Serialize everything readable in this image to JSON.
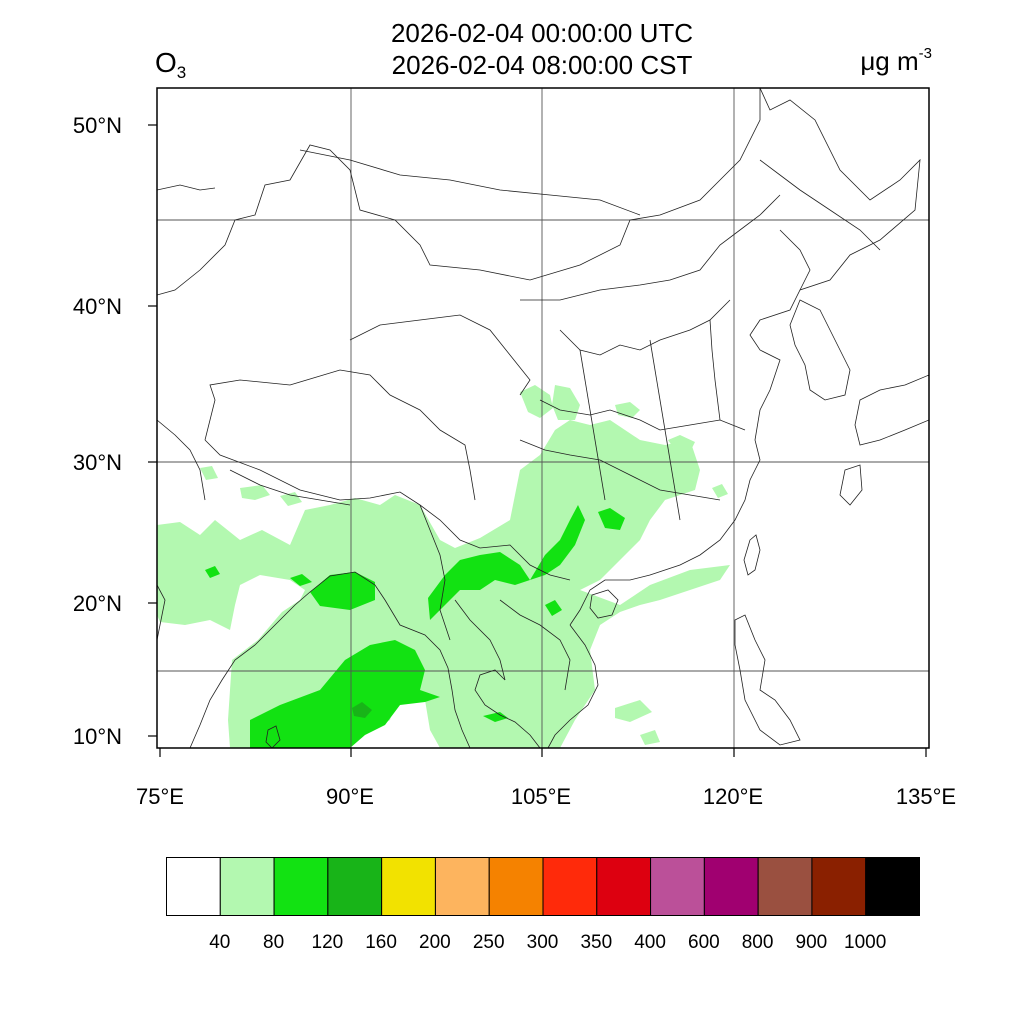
{
  "header": {
    "utc_time": "2026-02-04 00:00:00 UTC",
    "local_time": "2026-02-04 08:00:00 CST",
    "variable_main": "O",
    "variable_sub": "3",
    "unit_main": "μg m",
    "unit_sup": "-3"
  },
  "axes": {
    "lat_labels": [
      "50°N",
      "40°N",
      "30°N",
      "20°N",
      "10°N"
    ],
    "lon_labels": [
      "75°E",
      "90°E",
      "105°E",
      "120°E",
      "135°E"
    ],
    "lon_range": [
      75,
      135
    ],
    "lat_range": [
      9,
      52
    ]
  },
  "colorbar": {
    "levels": [
      "40",
      "80",
      "120",
      "160",
      "200",
      "250",
      "300",
      "350",
      "400",
      "600",
      "800",
      "900",
      "1000"
    ],
    "colors": [
      "#ffffff",
      "#b3f8b0",
      "#12e212",
      "#18b418",
      "#f2e200",
      "#fdb45e",
      "#f58200",
      "#ff2a0a",
      "#dd0010",
      "#bb5099",
      "#a00070",
      "#9a5040",
      "#8a2000",
      "#000000"
    ]
  },
  "map_layers": {
    "fill_light": "#b3f8b0",
    "fill_green": "#12e212",
    "fill_dark": "#18b418"
  }
}
